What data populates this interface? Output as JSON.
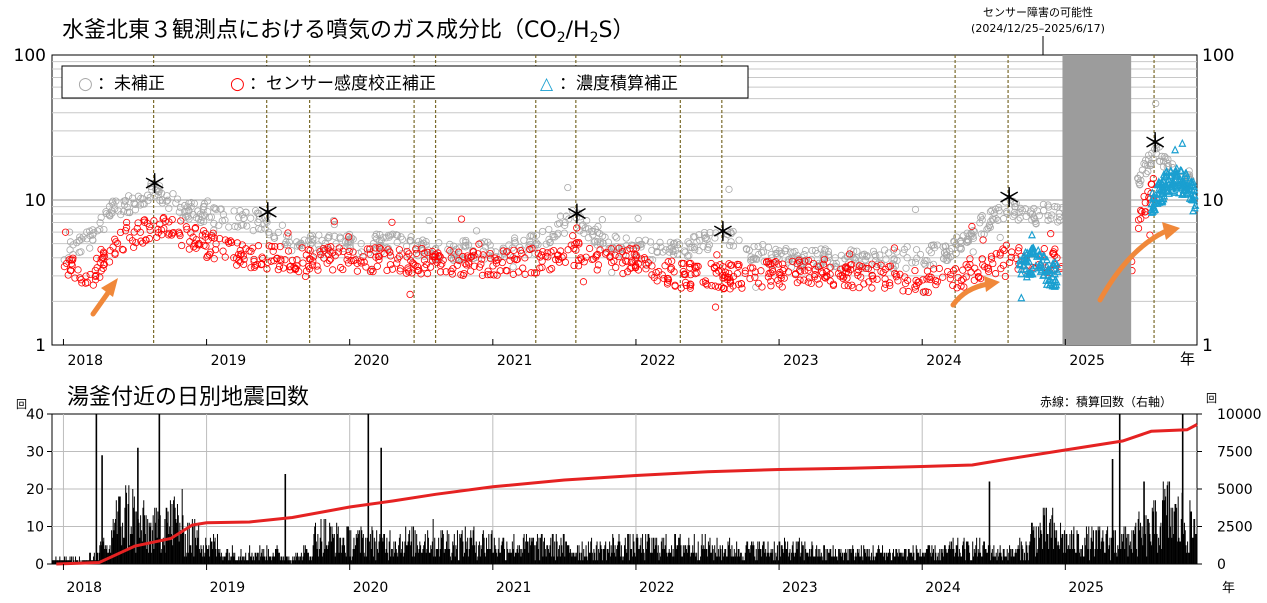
{
  "chart_data": [
    {
      "type": "scatter",
      "title": "水釜北東３観測点における噴気のガス成分比（CO",
      "title_sub1": "2",
      "title_mid": "/H",
      "title_sub2": "2",
      "title_end": "S）",
      "yscale": "log",
      "ylim": [
        1,
        100
      ],
      "yticks": [
        "1",
        "10",
        "100"
      ],
      "xlim": [
        2017.92,
        2025.92
      ],
      "xticks": [
        "2018",
        "2019",
        "2020",
        "2021",
        "2022",
        "2023",
        "2024",
        "2025"
      ],
      "x_unit": "年",
      "legend": [
        "○：未補正",
        "○：センサー感度校正補正",
        "△：濃度積算補正"
      ],
      "legend_colors": [
        "#a8a8a8",
        "#ff0000",
        "#1a9fd0"
      ],
      "outage_label": "センサー障害の可能性",
      "outage_range_label": "(2024/12/25–2025/6/17)",
      "outage": [
        2024.98,
        2025.46
      ],
      "marker_asterisk": "＊",
      "asterisks_x": [
        2018.63,
        2019.42,
        2021.58,
        2022.6,
        2024.6,
        2025.62
      ],
      "event_lines_x": [
        2018.63,
        2019.42,
        2019.72,
        2020.45,
        2020.6,
        2021.3,
        2021.58,
        2022.31,
        2022.6,
        2024.23,
        2024.6,
        2025.62
      ],
      "series": [
        {
          "name": "未補正",
          "color": "#a8a8a8",
          "x": [
            2018.0,
            2018.2,
            2018.35,
            2018.5,
            2018.6,
            2018.63,
            2018.8,
            2019.0,
            2019.2,
            2019.42,
            2019.6,
            2019.8,
            2020.0,
            2020.3,
            2020.6,
            2021.0,
            2021.3,
            2021.45,
            2021.58,
            2021.8,
            2022.0,
            2022.3,
            2022.45,
            2022.6,
            2022.8,
            2023.0,
            2023.3,
            2023.6,
            2024.0,
            2024.2,
            2024.4,
            2024.6,
            2024.75,
            2024.9,
            2025.5,
            2025.55,
            2025.62,
            2025.75,
            2025.9
          ],
          "y": [
            4.5,
            5.5,
            8.5,
            10,
            11,
            12,
            9,
            8,
            7.5,
            7,
            5,
            5,
            5,
            5,
            4.5,
            4.5,
            5,
            6.5,
            7.5,
            5,
            4.5,
            4.5,
            5,
            6,
            4.5,
            4,
            4,
            3.8,
            4,
            4.5,
            6.5,
            8.5,
            8,
            8,
            12,
            16,
            22,
            16,
            13
          ]
        },
        {
          "name": "センサー感度校正補正",
          "color": "#ff0000",
          "x": [
            2018.0,
            2018.1,
            2018.2,
            2018.35,
            2018.5,
            2018.63,
            2018.8,
            2019.0,
            2019.2,
            2019.42,
            2019.6,
            2019.8,
            2020.0,
            2020.3,
            2020.6,
            2021.0,
            2021.3,
            2021.58,
            2021.8,
            2022.0,
            2022.3,
            2022.6,
            2022.8,
            2023.0,
            2023.3,
            2023.6,
            2024.0,
            2024.2,
            2024.4,
            2024.6,
            2025.46,
            2025.5,
            2025.55,
            2025.62
          ],
          "y": [
            3.5,
            3.2,
            3.0,
            5.0,
            5.5,
            6.5,
            6.0,
            5.0,
            4.2,
            4.0,
            3.8,
            4.0,
            4.0,
            3.8,
            3.8,
            3.6,
            3.8,
            4.2,
            3.8,
            3.8,
            3.0,
            3.0,
            3.0,
            3.2,
            3.2,
            3.0,
            2.8,
            2.8,
            3.5,
            4.0,
            3.5,
            5.5,
            9.0,
            12.0
          ]
        },
        {
          "name": "濃度積算補正",
          "color": "#1a9fd0",
          "x": [
            2024.7,
            2024.8,
            2024.9,
            2025.62,
            2025.7,
            2025.8,
            2025.9
          ],
          "y": [
            3.5,
            4.0,
            3.0,
            10,
            13,
            14,
            11
          ]
        }
      ]
    },
    {
      "type": "bar",
      "title": "湯釜付近の日別地震回数",
      "ylabel": "回",
      "y2label": "回",
      "ylim": [
        0,
        40
      ],
      "y2lim": [
        0,
        10000
      ],
      "yticks": [
        "0",
        "10",
        "20",
        "30",
        "40"
      ],
      "y2ticks": [
        "0",
        "2500",
        "5000",
        "7500",
        "10000"
      ],
      "xlim": [
        2017.92,
        2025.92
      ],
      "xticks": [
        "2018",
        "2019",
        "2020",
        "2021",
        "2022",
        "2023",
        "2024",
        "2025"
      ],
      "x_unit": "年",
      "legend": "赤線：積算回数（右軸）",
      "cumulative_color": "#e52222",
      "cumulative": {
        "x": [
          2017.95,
          2018.25,
          2018.5,
          2018.75,
          2018.9,
          2019.0,
          2019.3,
          2019.6,
          2020.0,
          2020.3,
          2020.6,
          2021.0,
          2021.5,
          2022.0,
          2022.5,
          2023.0,
          2023.5,
          2024.0,
          2024.35,
          2024.6,
          2025.0,
          2025.4,
          2025.6,
          2025.85,
          2025.92
        ],
        "y": [
          0,
          100,
          1200,
          1700,
          2600,
          2750,
          2800,
          3100,
          3800,
          4200,
          4650,
          5150,
          5600,
          5900,
          6150,
          6300,
          6380,
          6500,
          6600,
          7000,
          7600,
          8200,
          8850,
          8950,
          9300
        ]
      },
      "bars": {
        "monthly_level": [
          1,
          1,
          2,
          4,
          12,
          14,
          10,
          9,
          11,
          12,
          8,
          7,
          5,
          3,
          3,
          3,
          3,
          3,
          2,
          2,
          3,
          8,
          7,
          6,
          6,
          6,
          6,
          6,
          6,
          6,
          7,
          6,
          6,
          6,
          6,
          6,
          5,
          5,
          5,
          5,
          5,
          5,
          4,
          4,
          4,
          4,
          5,
          5,
          5,
          5,
          5,
          5,
          5,
          5,
          4,
          4,
          4,
          4,
          4,
          4,
          4,
          4,
          4,
          3,
          3,
          3,
          3,
          3,
          3,
          3,
          3,
          3,
          3,
          3,
          4,
          4,
          4,
          4,
          3,
          3,
          4,
          8,
          9,
          7,
          6,
          6,
          6,
          6,
          6,
          7,
          8,
          10,
          14,
          12,
          10,
          8
        ],
        "spikes_x": [
          2018.23,
          2018.27,
          2018.52,
          2018.67,
          2018.72,
          2019.55,
          2020.13,
          2020.22,
          2024.47,
          2025.33,
          2025.38,
          2025.55,
          2025.82
        ],
        "spikes_y": [
          40,
          29,
          31,
          40,
          15,
          24,
          40,
          31,
          22,
          28,
          40,
          22,
          40
        ]
      }
    }
  ]
}
